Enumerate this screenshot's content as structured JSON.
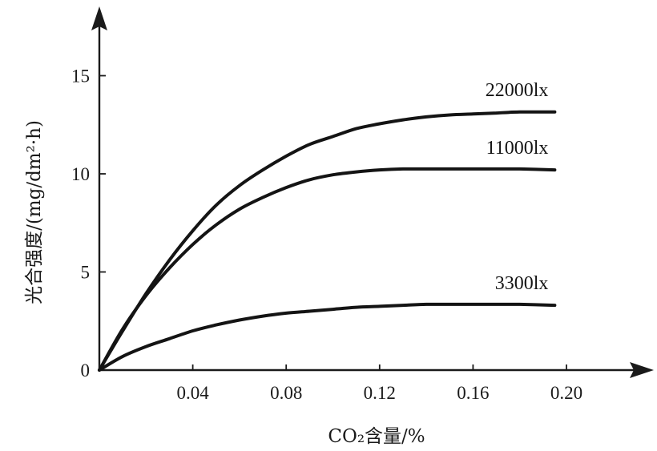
{
  "chart_data": {
    "type": "line",
    "title": "",
    "xlabel": "CO₂含量/%",
    "ylabel": "光合强度/(mg/dm²·h)",
    "xlim": [
      0,
      0.22
    ],
    "ylim": [
      0,
      18
    ],
    "x_ticks": [
      "0.04",
      "0.08",
      "0.12",
      "0.16",
      "0.20"
    ],
    "y_ticks": [
      "0",
      "5",
      "10",
      "15"
    ],
    "grid": false,
    "legend": "none",
    "series": [
      {
        "name": "22000lx",
        "x": [
          0,
          0.01,
          0.02,
          0.03,
          0.04,
          0.05,
          0.06,
          0.07,
          0.08,
          0.09,
          0.1,
          0.11,
          0.12,
          0.13,
          0.14,
          0.15,
          0.16,
          0.17,
          0.18,
          0.195
        ],
        "y": [
          0,
          2.0,
          3.9,
          5.6,
          7.1,
          8.4,
          9.4,
          10.2,
          10.9,
          11.5,
          11.9,
          12.3,
          12.55,
          12.75,
          12.9,
          13.0,
          13.05,
          13.1,
          13.15,
          13.15
        ]
      },
      {
        "name": "11000lx",
        "x": [
          0,
          0.01,
          0.02,
          0.03,
          0.04,
          0.05,
          0.06,
          0.07,
          0.08,
          0.09,
          0.1,
          0.11,
          0.12,
          0.13,
          0.14,
          0.15,
          0.16,
          0.17,
          0.18,
          0.195
        ],
        "y": [
          0,
          2.1,
          3.8,
          5.2,
          6.4,
          7.4,
          8.2,
          8.8,
          9.3,
          9.7,
          9.95,
          10.1,
          10.2,
          10.25,
          10.25,
          10.25,
          10.25,
          10.25,
          10.25,
          10.2
        ]
      },
      {
        "name": "3300lx",
        "x": [
          0,
          0.01,
          0.02,
          0.03,
          0.04,
          0.05,
          0.06,
          0.07,
          0.08,
          0.09,
          0.1,
          0.11,
          0.12,
          0.13,
          0.14,
          0.15,
          0.16,
          0.17,
          0.18,
          0.195
        ],
        "y": [
          0,
          0.7,
          1.2,
          1.6,
          2.0,
          2.3,
          2.55,
          2.75,
          2.9,
          3.0,
          3.1,
          3.2,
          3.25,
          3.3,
          3.35,
          3.35,
          3.35,
          3.35,
          3.35,
          3.3
        ]
      }
    ]
  }
}
